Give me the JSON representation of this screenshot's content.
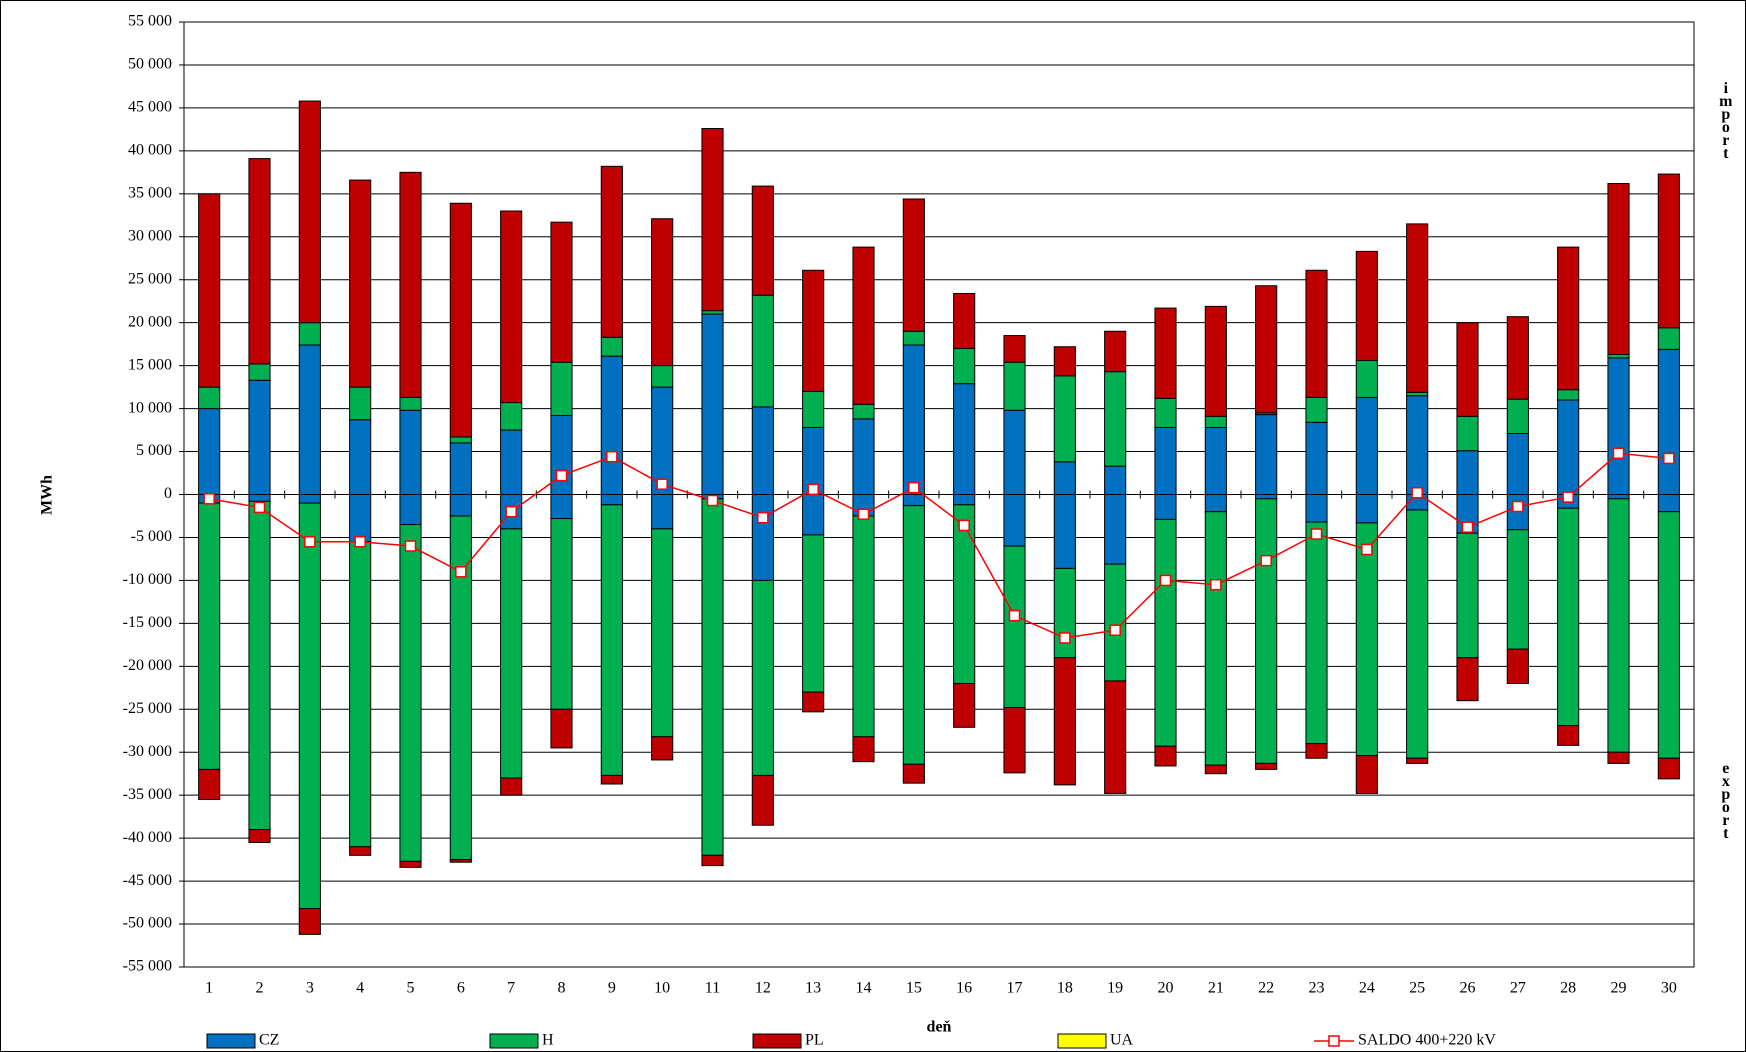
{
  "chart_data": {
    "type": "bar",
    "stacked": true,
    "y_label": "MWh",
    "x_label": "deň",
    "annotations": [
      "import",
      "export"
    ],
    "categories": [
      "1",
      "2",
      "3",
      "4",
      "5",
      "6",
      "7",
      "8",
      "9",
      "10",
      "11",
      "12",
      "13",
      "14",
      "15",
      "16",
      "17",
      "18",
      "19",
      "20",
      "21",
      "22",
      "23",
      "24",
      "25",
      "26",
      "27",
      "28",
      "29",
      "30"
    ],
    "ylim": [
      -55000,
      55000
    ],
    "yticks": [
      {
        "value": 55000,
        "label": "55 000"
      },
      {
        "value": 50000,
        "label": "50 000"
      },
      {
        "value": 45000,
        "label": "45 000"
      },
      {
        "value": 40000,
        "label": "40 000"
      },
      {
        "value": 35000,
        "label": "35 000"
      },
      {
        "value": 30000,
        "label": "30 000"
      },
      {
        "value": 25000,
        "label": "25 000"
      },
      {
        "value": 20000,
        "label": "20 000"
      },
      {
        "value": 15000,
        "label": "15 000"
      },
      {
        "value": 10000,
        "label": "10 000"
      },
      {
        "value": 5000,
        "label": "5 000"
      },
      0,
      {
        "value": -5000,
        "label": "-5 000"
      },
      {
        "value": -10000,
        "label": "-10 000"
      },
      {
        "value": -15000,
        "label": "-15 000"
      },
      {
        "value": -20000,
        "label": "-20 000"
      },
      {
        "value": -25000,
        "label": "-25 000"
      },
      {
        "value": -30000,
        "label": "-30 000"
      },
      {
        "value": -35000,
        "label": "-35 000"
      },
      {
        "value": -40000,
        "label": "-40 000"
      },
      {
        "value": -45000,
        "label": "-45 000"
      },
      {
        "value": -50000,
        "label": "-50 000"
      },
      {
        "value": -55000,
        "label": "-55 000"
      }
    ],
    "grid": true,
    "series": [
      {
        "name": "CZ",
        "color": "#0070c0",
        "import": [
          10000,
          13300,
          17400,
          8700,
          9800,
          6000,
          7500,
          9200,
          16100,
          12500,
          21000,
          10200,
          7800,
          8800,
          17400,
          12900,
          9800,
          3800,
          3300,
          7800,
          7800,
          9300,
          8400,
          11300,
          11500,
          5100,
          7100,
          11000,
          15900,
          16900
        ],
        "export": [
          -1000,
          -800,
          -1000,
          -5500,
          -3500,
          -2500,
          -4000,
          -2800,
          -1200,
          -4000,
          -500,
          -10000,
          -4700,
          -2500,
          -1300,
          -1200,
          -6000,
          -8600,
          -8100,
          -2900,
          -2000,
          -500,
          -3200,
          -3300,
          -1800,
          -4500,
          -4100,
          -1600,
          -500,
          -2000
        ]
      },
      {
        "name": "H",
        "color": "#00b050",
        "import": [
          2500,
          1900,
          2600,
          3800,
          1500,
          700,
          3200,
          6200,
          2200,
          2500,
          400,
          13000,
          4200,
          1700,
          1600,
          4100,
          5600,
          10000,
          11000,
          3400,
          1300,
          200,
          2900,
          4300,
          400,
          4000,
          4000,
          1200,
          400,
          2500
        ],
        "export": [
          -31000,
          -38200,
          -47200,
          -35500,
          -39200,
          -40000,
          -29000,
          -22200,
          -31500,
          -24200,
          -41500,
          -22700,
          -18300,
          -25700,
          -30100,
          -20800,
          -18800,
          -10400,
          -13600,
          -26400,
          -29500,
          -30800,
          -25800,
          -27100,
          -28900,
          -14500,
          -13900,
          -25300,
          -29500,
          -28700
        ]
      },
      {
        "name": "PL",
        "color": "#c00000",
        "import": [
          22500,
          23900,
          25800,
          24100,
          26200,
          27200,
          22300,
          16300,
          19900,
          17100,
          21200,
          12700,
          14100,
          18300,
          15400,
          6400,
          3100,
          3400,
          4700,
          10500,
          12800,
          14800,
          14800,
          12700,
          19600,
          10900,
          9600,
          16600,
          19900,
          17900
        ],
        "export": [
          -3500,
          -1500,
          -3000,
          -1000,
          -700,
          -300,
          -2000,
          -4500,
          -1000,
          -2700,
          -1200,
          -5800,
          -2300,
          -2900,
          -2200,
          -5100,
          -7600,
          -14800,
          -13100,
          -2300,
          -1000,
          -700,
          -1700,
          -4400,
          -600,
          -5000,
          -4000,
          -2300,
          -1300,
          -2400
        ]
      },
      {
        "name": "UA",
        "color": "#ffff00",
        "import": [
          0,
          0,
          0,
          0,
          0,
          0,
          0,
          0,
          0,
          0,
          0,
          0,
          0,
          0,
          0,
          0,
          0,
          0,
          0,
          0,
          0,
          0,
          0,
          0,
          0,
          0,
          0,
          0,
          0,
          0
        ],
        "export": [
          0,
          0,
          0,
          0,
          0,
          0,
          0,
          0,
          0,
          0,
          0,
          0,
          0,
          0,
          0,
          0,
          0,
          0,
          0,
          0,
          0,
          0,
          0,
          0,
          0,
          0,
          0,
          0,
          0,
          0
        ]
      }
    ],
    "line": {
      "name": "SALDO 400+220 kV",
      "color": "#ff0000",
      "values": [
        -500,
        -1500,
        -5500,
        -5500,
        -6000,
        -9000,
        -2000,
        2200,
        4400,
        1200,
        -700,
        -2700,
        600,
        -2300,
        800,
        -3600,
        -14100,
        -16700,
        -15800,
        -10000,
        -10500,
        -7700,
        -4600,
        -6400,
        200,
        -3800,
        -1400,
        -300,
        4800,
        4200
      ]
    }
  }
}
